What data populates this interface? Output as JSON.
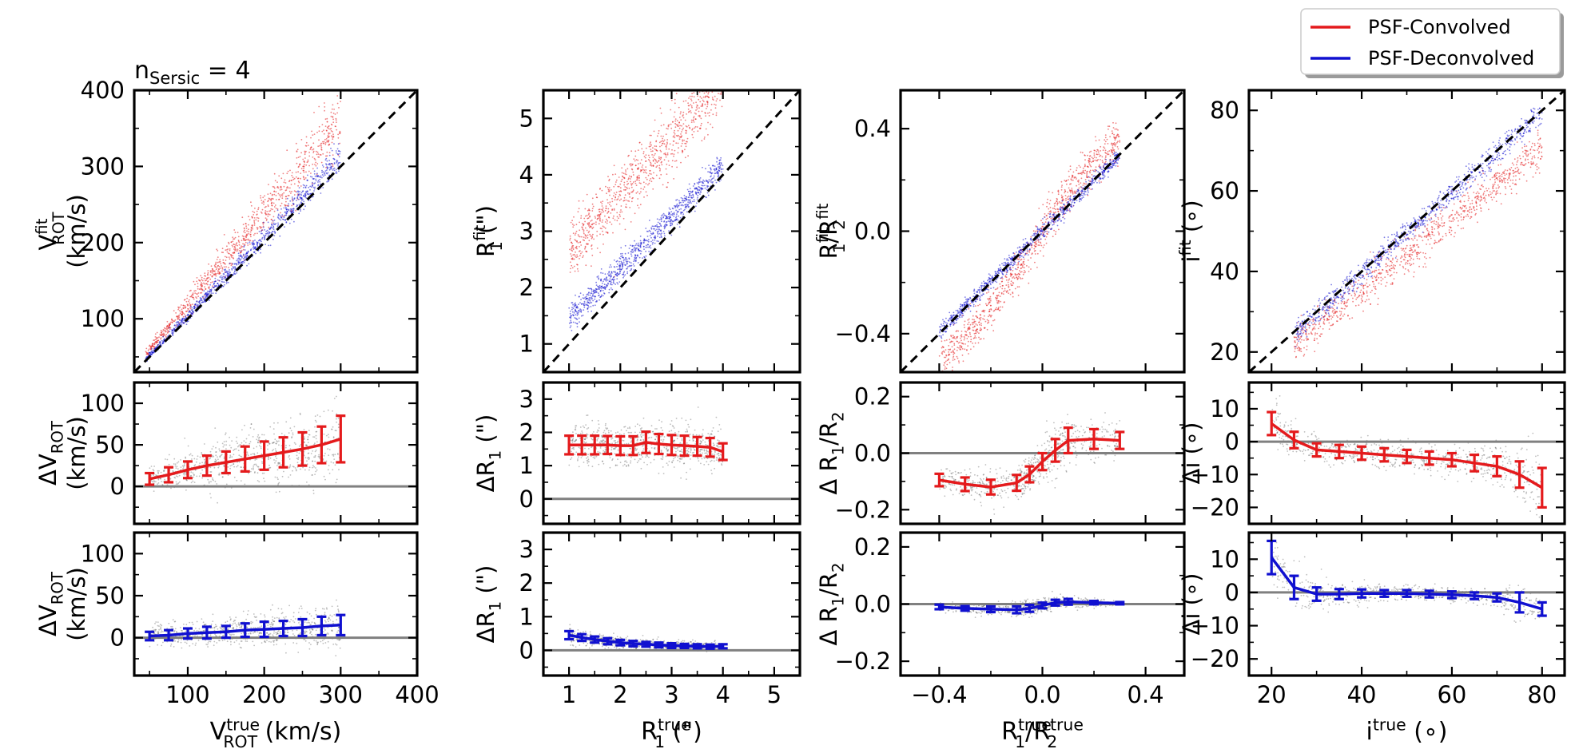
{
  "figure_title": "n",
  "figure_title_sub": "Sersic",
  "figure_title_rest": " = 4",
  "legend": {
    "placement": "top-right",
    "entries": [
      {
        "label": "PSF-Convolved",
        "color": "#e41a1c"
      },
      {
        "label": "PSF-Deconvolved",
        "color": "#1010d0"
      }
    ]
  },
  "colors": {
    "convolved": "#e41a1c",
    "deconvolved": "#1010d0",
    "scatter_black": "#444444",
    "zero_line": "#808080",
    "one_to_one": "#000000"
  },
  "chart_data": [
    {
      "type": "scatter",
      "column": "vrot",
      "xlim": [
        30,
        400
      ],
      "xticks": [
        100,
        200,
        300,
        400
      ],
      "xtick_labels": [
        "100",
        "200",
        "300",
        "400"
      ],
      "xlabel": {
        "main": "V",
        "sup": "true",
        "sub": "ROT",
        "rest": " (km/s)"
      },
      "top": {
        "ylim": [
          30,
          400
        ],
        "yticks": [
          100,
          200,
          300,
          400
        ],
        "ytick_labels": [
          "100",
          "200",
          "300",
          "400"
        ],
        "ylabel_line1": {
          "main": "V",
          "sup": "fit",
          "sub": "ROT"
        },
        "ylabel_line2": "(km/s)",
        "one_to_one": true,
        "clouds": [
          {
            "series": "convolved",
            "x_range": [
              45,
              300
            ],
            "relation": "y = 1.19x",
            "spread": 0.07
          },
          {
            "series": "deconvolved",
            "x_range": [
              45,
              300
            ],
            "relation": "y = 1.04x",
            "spread": 0.035
          }
        ]
      },
      "mid": {
        "ylim": [
          -45,
          125
        ],
        "yticks": [
          0,
          50,
          100
        ],
        "ytick_labels": [
          "0",
          "50",
          "100"
        ],
        "ylabel_line1": {
          "main": "ΔV",
          "sub": "ROT"
        },
        "ylabel_line2": "(km/s)",
        "zero_line": 0,
        "series": "convolved",
        "x": [
          50,
          75,
          100,
          125,
          150,
          175,
          200,
          225,
          250,
          275,
          300
        ],
        "y": [
          9,
          14,
          20,
          25,
          29,
          33,
          37,
          41,
          45,
          50,
          57
        ],
        "err": [
          7,
          9,
          10,
          12,
          13,
          15,
          17,
          18,
          20,
          22,
          28
        ]
      },
      "bot": {
        "ylim": [
          -45,
          125
        ],
        "yticks": [
          0,
          50,
          100
        ],
        "ytick_labels": [
          "0",
          "50",
          "100"
        ],
        "ylabel_line1": {
          "main": "ΔV",
          "sub": "ROT"
        },
        "ylabel_line2": "(km/s)",
        "zero_line": 0,
        "series": "deconvolved",
        "x": [
          50,
          75,
          100,
          125,
          150,
          175,
          200,
          225,
          250,
          275,
          300
        ],
        "y": [
          2,
          3,
          5,
          6,
          7,
          9,
          10,
          11,
          12,
          14,
          15
        ],
        "err": [
          5,
          6,
          6,
          7,
          7,
          8,
          9,
          9,
          10,
          11,
          12
        ]
      }
    },
    {
      "type": "scatter",
      "column": "r1",
      "xlim": [
        0.5,
        5.5
      ],
      "xticks": [
        1,
        2,
        3,
        4,
        5
      ],
      "xtick_labels": [
        "1",
        "2",
        "3",
        "4",
        "5"
      ],
      "xlabel": {
        "main": "R",
        "sup": "true",
        "sub": "1",
        "rest": " (\")"
      },
      "top": {
        "ylim": [
          0.5,
          5.5
        ],
        "yticks": [
          1,
          2,
          3,
          4,
          5
        ],
        "ytick_labels": [
          "1",
          "2",
          "3",
          "4",
          "5"
        ],
        "ylabel_line1": {
          "main": "R",
          "sup": "fit",
          "sub": "1",
          "rest": " (\")"
        },
        "one_to_one": true,
        "clouds": [
          {
            "series": "convolved",
            "x_range": [
              1,
              4
            ],
            "relation": "y = x + 1.65",
            "spread": 0.28
          },
          {
            "series": "deconvolved",
            "x_range": [
              1,
              4
            ],
            "relation": "y = x + 0.45 - 0.1(x-1)",
            "spread": 0.12
          }
        ]
      },
      "mid": {
        "ylim": [
          -0.75,
          3.5
        ],
        "yticks": [
          0,
          1,
          2,
          3
        ],
        "ytick_labels": [
          "0",
          "1",
          "2",
          "3"
        ],
        "ylabel_line1": {
          "main": "ΔR",
          "sub": "1",
          "rest": " (\")"
        },
        "zero_line": 0,
        "series": "convolved",
        "x": [
          1,
          1.25,
          1.5,
          1.75,
          2,
          2.25,
          2.5,
          2.75,
          3,
          3.25,
          3.5,
          3.75,
          4
        ],
        "y": [
          1.62,
          1.62,
          1.62,
          1.62,
          1.6,
          1.6,
          1.7,
          1.65,
          1.62,
          1.6,
          1.58,
          1.55,
          1.42
        ],
        "err": [
          0.28,
          0.28,
          0.28,
          0.27,
          0.28,
          0.28,
          0.32,
          0.3,
          0.3,
          0.3,
          0.28,
          0.28,
          0.25
        ]
      },
      "bot": {
        "ylim": [
          -0.75,
          3.5
        ],
        "yticks": [
          0,
          1,
          2,
          3
        ],
        "ytick_labels": [
          "0",
          "1",
          "2",
          "3"
        ],
        "ylabel_line1": {
          "main": "ΔR",
          "sub": "1",
          "rest": " (\")"
        },
        "zero_line": 0,
        "series": "deconvolved",
        "x": [
          1,
          1.25,
          1.5,
          1.75,
          2,
          2.25,
          2.5,
          2.75,
          3,
          3.25,
          3.5,
          3.75,
          4
        ],
        "y": [
          0.45,
          0.38,
          0.32,
          0.27,
          0.23,
          0.2,
          0.18,
          0.16,
          0.14,
          0.13,
          0.12,
          0.11,
          0.12
        ],
        "err": [
          0.12,
          0.1,
          0.09,
          0.09,
          0.08,
          0.08,
          0.07,
          0.07,
          0.07,
          0.06,
          0.06,
          0.06,
          0.06
        ]
      }
    },
    {
      "type": "scatter",
      "column": "ratio",
      "xlim": [
        -0.55,
        0.55
      ],
      "xticks": [
        -0.4,
        0.0,
        0.4
      ],
      "xtick_labels": [
        "−0.4",
        "0.0",
        "0.4"
      ],
      "xlabel": {
        "main": "R",
        "sup": "true",
        "sub": "1",
        "rest": "/R",
        "sup2": "true",
        "sub2": "2"
      },
      "top": {
        "ylim": [
          -0.55,
          0.55
        ],
        "yticks": [
          -0.4,
          0.0,
          0.4
        ],
        "ytick_labels": [
          "−0.4",
          "0.0",
          "0.4"
        ],
        "ylabel_line1": {
          "main": "R",
          "sup": "fit",
          "sub": "1",
          "rest": "/R",
          "sup2": "fit",
          "sub2": "2"
        },
        "one_to_one": true,
        "clouds": [
          {
            "series": "convolved",
            "x_range": [
              -0.4,
              0.3
            ],
            "relation": "steeper S-curve",
            "spread": 0.04
          },
          {
            "series": "deconvolved",
            "x_range": [
              -0.4,
              0.3
            ],
            "relation": "y ≈ x",
            "spread": 0.015
          }
        ]
      },
      "mid": {
        "ylim": [
          -0.25,
          0.25
        ],
        "yticks": [
          -0.2,
          0.0,
          0.2
        ],
        "ytick_labels": [
          "−0.2",
          "0.0",
          "0.2"
        ],
        "ylabel_line1": {
          "main": "Δ R",
          "sub": "1",
          "rest": "/R",
          "sub2": "2"
        },
        "zero_line": 0,
        "series": "convolved",
        "x": [
          -0.4,
          -0.3,
          -0.2,
          -0.1,
          -0.05,
          0.0,
          0.05,
          0.1,
          0.2,
          0.3
        ],
        "y": [
          -0.095,
          -0.11,
          -0.12,
          -0.105,
          -0.075,
          -0.03,
          0.01,
          0.045,
          0.05,
          0.045
        ],
        "err": [
          0.022,
          0.024,
          0.026,
          0.028,
          0.028,
          0.03,
          0.04,
          0.045,
          0.035,
          0.03
        ]
      },
      "bot": {
        "ylim": [
          -0.25,
          0.25
        ],
        "yticks": [
          -0.2,
          0.0,
          0.2
        ],
        "ytick_labels": [
          "−0.2",
          "0.0",
          "0.2"
        ],
        "ylabel_line1": {
          "main": "Δ R",
          "sub": "1",
          "rest": "/R",
          "sub2": "2"
        },
        "zero_line": 0,
        "series": "deconvolved",
        "x": [
          -0.4,
          -0.3,
          -0.2,
          -0.1,
          -0.05,
          0.0,
          0.05,
          0.1,
          0.2,
          0.3
        ],
        "y": [
          -0.01,
          -0.015,
          -0.018,
          -0.02,
          -0.015,
          -0.005,
          0.005,
          0.008,
          0.005,
          0.003
        ],
        "err": [
          0.008,
          0.008,
          0.01,
          0.012,
          0.012,
          0.01,
          0.01,
          0.01,
          0.006,
          0.004
        ]
      }
    },
    {
      "type": "scatter",
      "column": "incl",
      "xlim": [
        15,
        85
      ],
      "xticks": [
        20,
        40,
        60,
        80
      ],
      "xtick_labels": [
        "20",
        "40",
        "60",
        "80"
      ],
      "xlabel": {
        "main": "i",
        "sup": "true",
        "rest": " (∘)"
      },
      "top": {
        "ylim": [
          15,
          85
        ],
        "yticks": [
          20,
          40,
          60,
          80
        ],
        "ytick_labels": [
          "20",
          "40",
          "60",
          "80"
        ],
        "ylabel_line1": {
          "main": "i",
          "sup": "fit",
          "rest": " (∘)"
        },
        "one_to_one": true,
        "clouds": [
          {
            "series": "convolved",
            "x_range": [
              25,
              80
            ],
            "relation": "y = x - 3 - 0.12(x-25)",
            "spread": 2.4
          },
          {
            "series": "deconvolved",
            "x_range": [
              25,
              80
            ],
            "relation": "y ≈ x - 0.5",
            "spread": 1.4
          }
        ]
      },
      "mid": {
        "ylim": [
          -25,
          18
        ],
        "yticks": [
          -20,
          -10,
          0,
          10
        ],
        "ytick_labels": [
          "−20",
          "−10",
          "0",
          "10"
        ],
        "ylabel_line1": {
          "main": "Δi",
          "rest": " (∘)"
        },
        "zero_line": 0,
        "series": "convolved",
        "x": [
          20,
          25,
          30,
          35,
          40,
          45,
          50,
          55,
          60,
          65,
          70,
          75,
          80
        ],
        "y": [
          5.5,
          0.5,
          -2.5,
          -3,
          -3.5,
          -4,
          -4.5,
          -5,
          -5.5,
          -6.5,
          -7.5,
          -10,
          -14
        ],
        "err": [
          3.5,
          2.5,
          2,
          2,
          2,
          2,
          2,
          2,
          2,
          2.5,
          3,
          4,
          6
        ]
      },
      "bot": {
        "ylim": [
          -25,
          18
        ],
        "yticks": [
          -20,
          -10,
          0,
          10
        ],
        "ytick_labels": [
          "−20",
          "−10",
          "0",
          "10"
        ],
        "ylabel_line1": {
          "main": "Δi",
          "rest": " (∘)"
        },
        "zero_line": 0,
        "series": "deconvolved",
        "x": [
          20,
          25,
          30,
          35,
          40,
          45,
          50,
          55,
          60,
          65,
          70,
          75,
          80
        ],
        "y": [
          10.5,
          1.5,
          -0.5,
          -0.5,
          -0.3,
          -0.3,
          -0.3,
          -0.5,
          -0.7,
          -1,
          -1.5,
          -3,
          -5
        ],
        "err": [
          5,
          3.5,
          2,
          1.5,
          1.2,
          1,
          1,
          1,
          1,
          1,
          1.2,
          3,
          2
        ]
      }
    }
  ]
}
